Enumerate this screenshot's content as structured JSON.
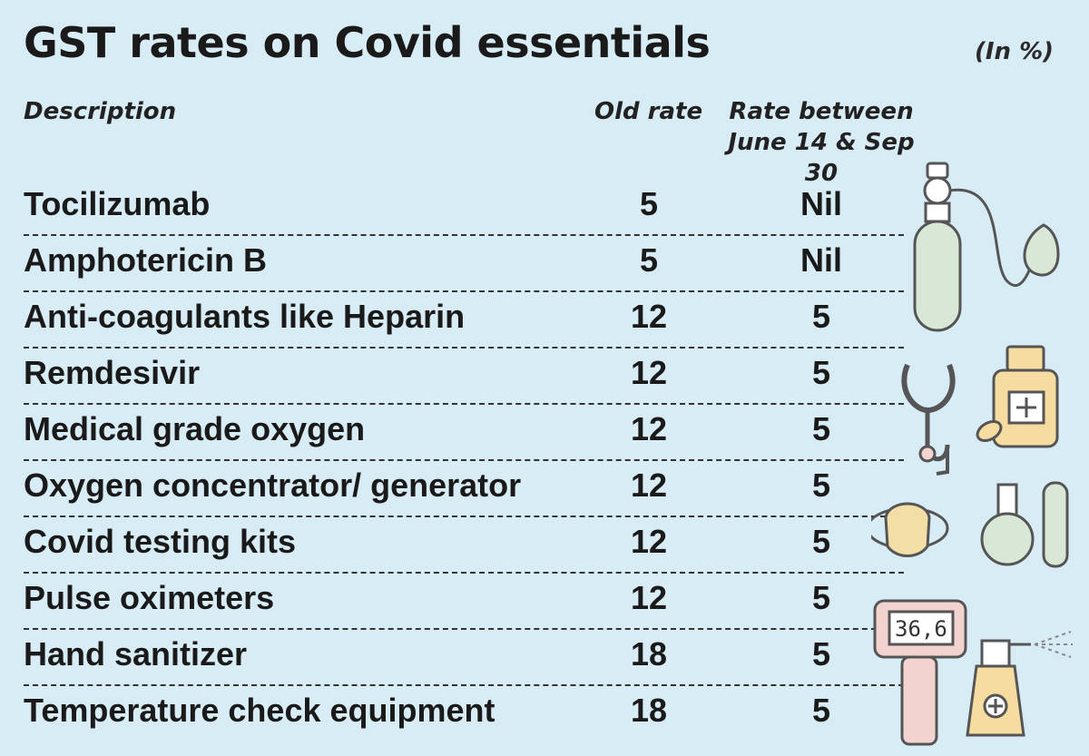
{
  "title": "GST rates on Covid essentials",
  "unit_note": "(In %)",
  "columns": {
    "description": "Description",
    "old_rate": "Old rate",
    "new_rate_line1": "Rate between",
    "new_rate_line2": "June 14 & Sep 30"
  },
  "rows": [
    {
      "description": "Tocilizumab",
      "old_rate": "5",
      "new_rate": "Nil"
    },
    {
      "description": "Amphotericin B",
      "old_rate": "5",
      "new_rate": "Nil"
    },
    {
      "description": "Anti-coagulants like Heparin",
      "old_rate": "12",
      "new_rate": "5"
    },
    {
      "description": "Remdesivir",
      "old_rate": "12",
      "new_rate": "5"
    },
    {
      "description": "Medical grade oxygen",
      "old_rate": "12",
      "new_rate": "5"
    },
    {
      "description": "Oxygen concentrator/ generator",
      "old_rate": "12",
      "new_rate": "5"
    },
    {
      "description": "Covid testing kits",
      "old_rate": "12",
      "new_rate": "5"
    },
    {
      "description": "Pulse oximeters",
      "old_rate": "12",
      "new_rate": "5"
    },
    {
      "description": "Hand sanitizer",
      "old_rate": "18",
      "new_rate": "5"
    },
    {
      "description": "Temperature check equipment",
      "old_rate": "18",
      "new_rate": "5"
    }
  ],
  "illustrations": {
    "icons": [
      "oxygen-cylinder-icon",
      "stethoscope-icon",
      "medicine-bottle-icon",
      "face-mask-icon",
      "flask-icon",
      "test-tube-icon",
      "thermometer-gun-icon",
      "spray-bottle-icon"
    ],
    "thermometer_reading": "36,6",
    "colors": {
      "background": "#d8ecf6",
      "cylinder": "#d9e8d6",
      "bottle": "#f6dca0",
      "mask": "#f3dfa6",
      "thermometer": "#f2d3d0",
      "outline": "#555555"
    }
  }
}
